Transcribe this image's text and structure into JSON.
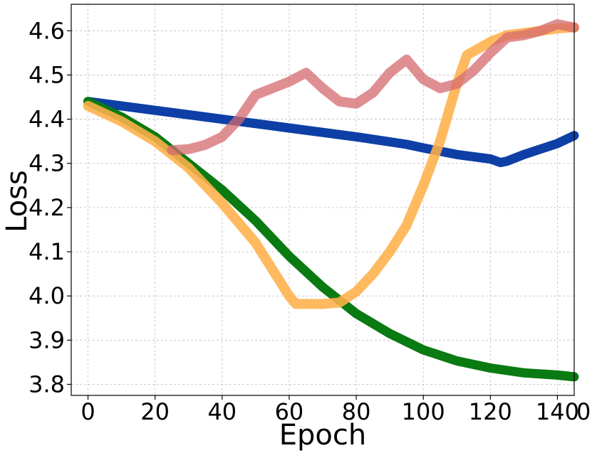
{
  "chart_data": {
    "type": "line",
    "title": "",
    "xlabel": "Epoch",
    "ylabel": "Loss",
    "xlim": [
      -5,
      145
    ],
    "ylim": [
      3.775,
      4.66
    ],
    "xticks": [
      0,
      20,
      40,
      60,
      80,
      100,
      120,
      140
    ],
    "xtick_labels": [
      "0",
      "20",
      "40",
      "60",
      "80",
      "100",
      "120",
      "140"
    ],
    "partial_tick_label": "0",
    "yticks": [
      3.8,
      3.9,
      4.0,
      4.1,
      4.2,
      4.3,
      4.4,
      4.5,
      4.6
    ],
    "ytick_labels": [
      "3.8",
      "3.9",
      "4.0",
      "4.1",
      "4.2",
      "4.3",
      "4.4",
      "4.5",
      "4.6"
    ],
    "grid": true,
    "series": [
      {
        "name": "blue",
        "color": "#0d3fa6",
        "opacity": 1,
        "width": 13,
        "x": [
          0,
          20,
          40,
          60,
          80,
          95,
          100,
          110,
          120,
          123,
          125,
          130,
          140,
          145
        ],
        "y": [
          4.44,
          4.42,
          4.4,
          4.38,
          4.36,
          4.343,
          4.335,
          4.32,
          4.31,
          4.302,
          4.305,
          4.32,
          4.345,
          4.363
        ]
      },
      {
        "name": "green",
        "color": "#0a7a12",
        "opacity": 1,
        "width": 13,
        "x": [
          0,
          10,
          20,
          30,
          40,
          50,
          60,
          70,
          80,
          90,
          100,
          110,
          120,
          130,
          140,
          145
        ],
        "y": [
          4.44,
          4.405,
          4.36,
          4.3,
          4.24,
          4.17,
          4.09,
          4.02,
          3.96,
          3.915,
          3.878,
          3.853,
          3.837,
          3.826,
          3.821,
          3.817
        ]
      },
      {
        "name": "orange",
        "color": "#ffb04a",
        "opacity": 0.88,
        "width": 14,
        "x": [
          0,
          10,
          20,
          30,
          40,
          50,
          55,
          60,
          62,
          65,
          70,
          75,
          80,
          85,
          90,
          95,
          100,
          105,
          110,
          113,
          120,
          125,
          130,
          135,
          140,
          145
        ],
        "y": [
          4.43,
          4.395,
          4.35,
          4.29,
          4.21,
          4.12,
          4.06,
          4.0,
          3.982,
          3.982,
          3.982,
          3.985,
          4.01,
          4.05,
          4.1,
          4.16,
          4.25,
          4.35,
          4.48,
          4.545,
          4.575,
          4.59,
          4.595,
          4.6,
          4.605,
          4.608
        ]
      },
      {
        "name": "red",
        "color": "#d46a6e",
        "opacity": 0.75,
        "width": 14,
        "x": [
          25,
          30,
          35,
          40,
          45,
          50,
          55,
          60,
          65,
          70,
          75,
          80,
          85,
          90,
          95,
          100,
          105,
          110,
          115,
          120,
          125,
          130,
          135,
          140,
          145
        ],
        "y": [
          4.33,
          4.332,
          4.342,
          4.36,
          4.4,
          4.455,
          4.47,
          4.485,
          4.505,
          4.47,
          4.44,
          4.435,
          4.46,
          4.505,
          4.535,
          4.49,
          4.47,
          4.48,
          4.51,
          4.55,
          4.585,
          4.59,
          4.6,
          4.615,
          4.607
        ]
      }
    ]
  }
}
